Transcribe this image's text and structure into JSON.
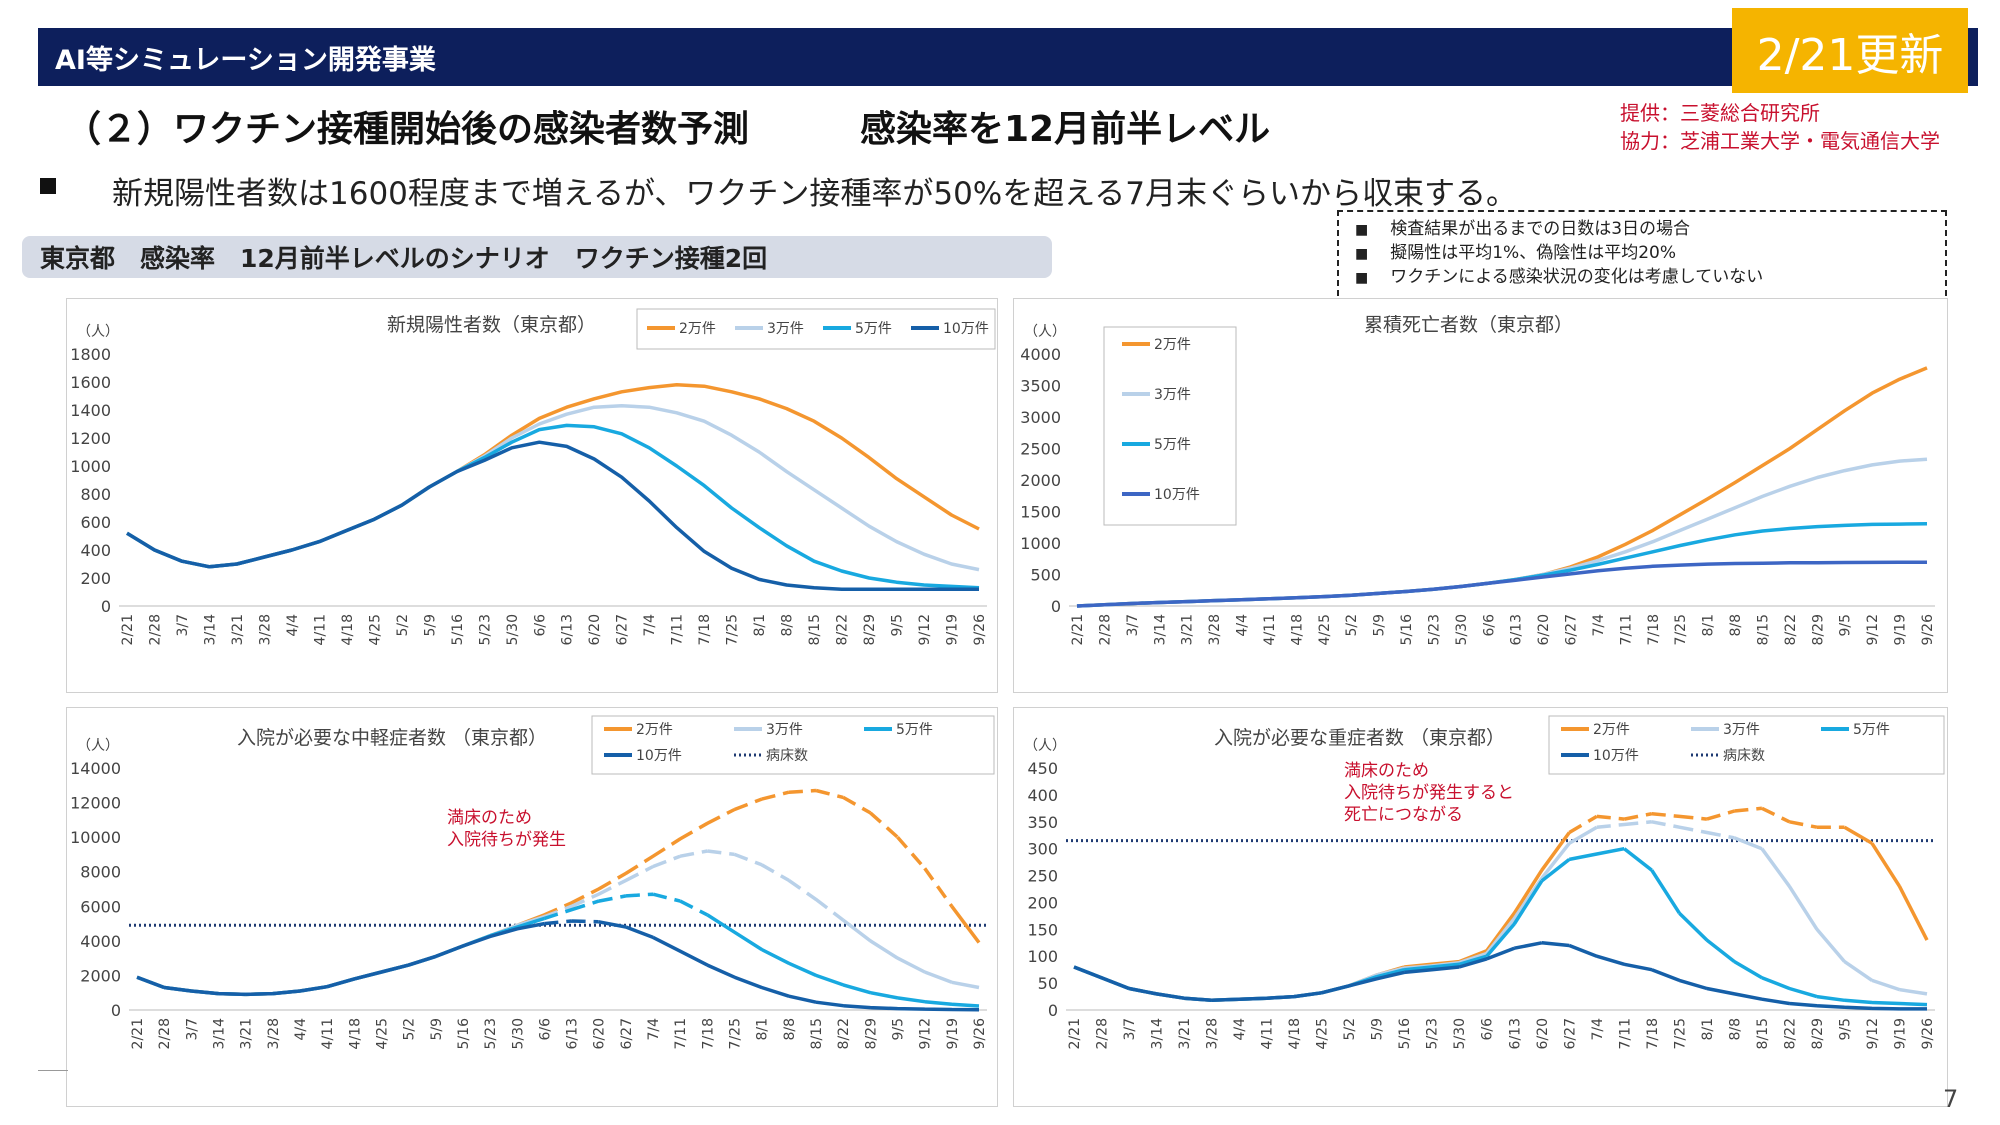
{
  "header": {
    "program": "AI等シミュレーション開発事業",
    "update_badge": "2/21更新",
    "title": "（２）ワクチン接種開始後の感染者数予測",
    "subtitle": "感染率を12月前半レベル",
    "credits": [
      "提供：三菱総合研究所",
      "協力：芝浦工業大学・電気通信大学"
    ]
  },
  "bullet": "新規陽性者数は1600程度まで増えるが、ワクチン接種率が50%を超える7月末ぐらいから収束する。",
  "scenario_label": "東京都　感染率　12月前半レベルのシナリオ　ワクチン接種2回",
  "notes": [
    "検査結果が出るまでの日数は3日の場合",
    "擬陽性は平均1%、偽陰性は平均20%",
    "ワクチンによる感染状況の変化は考慮していない"
  ],
  "page_number": "7",
  "colors": {
    "s1": "#f4962f",
    "s2": "#b9d1e9",
    "s3": "#18a9e0",
    "s4": "#155fa8",
    "s4_c2": "#3d66c4",
    "bed": "#1f3b73",
    "annotation": "#c8102e"
  },
  "chart_data": [
    {
      "id": "new_cases",
      "type": "line",
      "title": "新規陽性者数（東京都）",
      "ylabel": "（人）",
      "ylim": [
        0,
        1800
      ],
      "yticks": [
        0,
        200,
        400,
        600,
        800,
        1000,
        1200,
        1400,
        1600,
        1800
      ],
      "x": [
        "2/21",
        "2/28",
        "3/7",
        "3/14",
        "3/21",
        "3/28",
        "4/4",
        "4/11",
        "4/18",
        "4/25",
        "5/2",
        "5/9",
        "5/16",
        "5/23",
        "5/30",
        "6/6",
        "6/13",
        "6/20",
        "6/27",
        "7/4",
        "7/11",
        "7/18",
        "7/25",
        "8/1",
        "8/8",
        "8/15",
        "8/22",
        "8/29",
        "9/5",
        "9/12",
        "9/19",
        "9/26"
      ],
      "legend_position": "top-right",
      "series": [
        {
          "name": "2万件",
          "values": [
            520,
            400,
            320,
            280,
            300,
            350,
            400,
            460,
            540,
            620,
            720,
            850,
            960,
            1080,
            1220,
            1340,
            1420,
            1480,
            1530,
            1560,
            1580,
            1570,
            1530,
            1480,
            1410,
            1320,
            1200,
            1060,
            910,
            780,
            650,
            550
          ]
        },
        {
          "name": "3万件",
          "values": [
            520,
            400,
            320,
            280,
            300,
            350,
            400,
            460,
            540,
            620,
            720,
            850,
            960,
            1070,
            1200,
            1300,
            1370,
            1420,
            1430,
            1420,
            1380,
            1320,
            1220,
            1100,
            960,
            830,
            700,
            570,
            460,
            370,
            300,
            260
          ]
        },
        {
          "name": "5万件",
          "values": [
            520,
            400,
            320,
            280,
            300,
            350,
            400,
            460,
            540,
            620,
            720,
            850,
            960,
            1060,
            1170,
            1260,
            1290,
            1280,
            1230,
            1130,
            1000,
            860,
            700,
            560,
            430,
            320,
            250,
            200,
            170,
            150,
            140,
            130
          ]
        },
        {
          "name": "10万件",
          "values": [
            520,
            400,
            320,
            280,
            300,
            350,
            400,
            460,
            540,
            620,
            720,
            850,
            960,
            1040,
            1130,
            1170,
            1140,
            1050,
            920,
            750,
            560,
            390,
            270,
            190,
            150,
            130,
            120,
            120,
            120,
            120,
            120,
            120
          ]
        }
      ]
    },
    {
      "id": "cumulative_deaths",
      "type": "line",
      "title": "累積死亡者数（東京都）",
      "ylabel": "（人）",
      "ylim": [
        0,
        4000
      ],
      "yticks": [
        0,
        500,
        1000,
        1500,
        2000,
        2500,
        3000,
        3500,
        4000
      ],
      "x": [
        "2/21",
        "2/28",
        "3/7",
        "3/14",
        "3/21",
        "3/28",
        "4/4",
        "4/11",
        "4/18",
        "4/25",
        "5/2",
        "5/9",
        "5/16",
        "5/23",
        "5/30",
        "6/6",
        "6/13",
        "6/20",
        "6/27",
        "7/4",
        "7/11",
        "7/18",
        "7/25",
        "8/1",
        "8/8",
        "8/15",
        "8/22",
        "8/29",
        "9/5",
        "9/12",
        "9/19",
        "9/26"
      ],
      "legend_position": "left",
      "series": [
        {
          "name": "2万件",
          "values": [
            0,
            20,
            40,
            55,
            70,
            85,
            100,
            115,
            130,
            150,
            170,
            200,
            230,
            265,
            310,
            360,
            420,
            500,
            620,
            780,
            980,
            1200,
            1450,
            1700,
            1960,
            2230,
            2500,
            2800,
            3100,
            3380,
            3600,
            3780
          ]
        },
        {
          "name": "3万件",
          "values": [
            0,
            20,
            40,
            55,
            70,
            85,
            100,
            115,
            130,
            150,
            170,
            200,
            230,
            265,
            310,
            360,
            420,
            500,
            600,
            720,
            860,
            1020,
            1200,
            1380,
            1560,
            1740,
            1900,
            2040,
            2150,
            2240,
            2300,
            2330
          ]
        },
        {
          "name": "5万件",
          "values": [
            0,
            20,
            40,
            55,
            70,
            85,
            100,
            115,
            130,
            150,
            170,
            200,
            230,
            265,
            310,
            360,
            420,
            490,
            570,
            660,
            760,
            860,
            960,
            1050,
            1130,
            1190,
            1230,
            1260,
            1280,
            1295,
            1300,
            1305
          ]
        },
        {
          "name": "10万件",
          "values": [
            0,
            20,
            40,
            55,
            70,
            85,
            100,
            115,
            130,
            150,
            170,
            200,
            230,
            265,
            310,
            360,
            410,
            460,
            510,
            560,
            600,
            630,
            650,
            665,
            675,
            680,
            685,
            688,
            690,
            692,
            694,
            695
          ]
        }
      ]
    },
    {
      "id": "moderate_hospitalized",
      "type": "line",
      "title": "入院が必要な中軽症者数 （東京都）",
      "ylabel": "（人）",
      "ylim": [
        0,
        14000
      ],
      "yticks": [
        0,
        2000,
        4000,
        6000,
        8000,
        10000,
        12000,
        14000
      ],
      "x": [
        "2/21",
        "2/28",
        "3/7",
        "3/14",
        "3/21",
        "3/28",
        "4/4",
        "4/11",
        "4/18",
        "4/25",
        "5/2",
        "5/9",
        "5/16",
        "5/23",
        "5/30",
        "6/6",
        "6/13",
        "6/20",
        "6/27",
        "7/4",
        "7/11",
        "7/18",
        "7/25",
        "8/1",
        "8/8",
        "8/15",
        "8/22",
        "8/29",
        "9/5",
        "9/12",
        "9/19",
        "9/26"
      ],
      "legend_position": "top-right",
      "bed_capacity": 4900,
      "annotation": "満床のため\n入院待ちが発生",
      "series": [
        {
          "name": "2万件",
          "values": [
            1900,
            1300,
            1100,
            950,
            900,
            950,
            1100,
            1350,
            1800,
            2200,
            2600,
            3100,
            3700,
            4300,
            4900,
            5500,
            6200,
            7000,
            7900,
            8900,
            9900,
            10800,
            11600,
            12200,
            12600,
            12700,
            12300,
            11400,
            10000,
            8200,
            6000,
            3900
          ]
        },
        {
          "name": "3万件",
          "values": [
            1900,
            1300,
            1100,
            950,
            900,
            950,
            1100,
            1350,
            1800,
            2200,
            2600,
            3100,
            3700,
            4300,
            4900,
            5400,
            6000,
            6700,
            7500,
            8300,
            8900,
            9200,
            9000,
            8400,
            7500,
            6400,
            5200,
            4000,
            3000,
            2200,
            1600,
            1300
          ]
        },
        {
          "name": "5万件",
          "values": [
            1900,
            1300,
            1100,
            950,
            900,
            950,
            1100,
            1350,
            1800,
            2200,
            2600,
            3100,
            3700,
            4300,
            4800,
            5300,
            5800,
            6300,
            6600,
            6700,
            6300,
            5500,
            4500,
            3500,
            2700,
            2000,
            1450,
            1000,
            700,
            480,
            330,
            230
          ]
        },
        {
          "name": "10万件",
          "values": [
            1900,
            1300,
            1100,
            950,
            900,
            950,
            1100,
            1350,
            1800,
            2200,
            2600,
            3100,
            3700,
            4250,
            4700,
            5000,
            5150,
            5100,
            4800,
            4200,
            3400,
            2600,
            1900,
            1300,
            800,
            450,
            250,
            140,
            80,
            50,
            30,
            20
          ]
        }
      ],
      "bed_label": "病床数"
    },
    {
      "id": "severe_hospitalized",
      "type": "line",
      "title": "入院が必要な重症者数 （東京都）",
      "ylabel": "（人）",
      "ylim": [
        0,
        450
      ],
      "yticks": [
        0,
        50,
        100,
        150,
        200,
        250,
        300,
        350,
        400,
        450
      ],
      "x": [
        "2/21",
        "2/28",
        "3/7",
        "3/14",
        "3/21",
        "3/28",
        "4/4",
        "4/11",
        "4/18",
        "4/25",
        "5/2",
        "5/9",
        "5/16",
        "5/23",
        "5/30",
        "6/6",
        "6/13",
        "6/20",
        "6/27",
        "7/4",
        "7/11",
        "7/18",
        "7/25",
        "8/1",
        "8/8",
        "8/15",
        "8/22",
        "8/29",
        "9/5",
        "9/12",
        "9/19",
        "9/26"
      ],
      "legend_position": "top-right",
      "bed_capacity": 315,
      "annotation": "満床のため\n入院待ちが発生すると\n死亡につながる",
      "series": [
        {
          "name": "2万件",
          "values": [
            80,
            60,
            40,
            30,
            22,
            18,
            20,
            22,
            25,
            32,
            45,
            65,
            80,
            85,
            90,
            110,
            180,
            260,
            330,
            360,
            355,
            365,
            360,
            355,
            370,
            375,
            350,
            340,
            340,
            310,
            230,
            130
          ]
        },
        {
          "name": "3万件",
          "values": [
            80,
            60,
            40,
            30,
            22,
            18,
            20,
            22,
            25,
            32,
            45,
            65,
            78,
            82,
            88,
            105,
            170,
            245,
            310,
            340,
            345,
            350,
            340,
            330,
            320,
            300,
            230,
            150,
            90,
            55,
            38,
            30
          ]
        },
        {
          "name": "5万件",
          "values": [
            80,
            60,
            40,
            30,
            22,
            18,
            20,
            22,
            25,
            32,
            45,
            62,
            75,
            80,
            85,
            100,
            160,
            240,
            280,
            290,
            300,
            260,
            180,
            130,
            90,
            60,
            40,
            25,
            18,
            14,
            12,
            10
          ]
        },
        {
          "name": "10万件",
          "values": [
            80,
            60,
            40,
            30,
            22,
            18,
            20,
            22,
            25,
            32,
            45,
            58,
            70,
            75,
            80,
            95,
            115,
            125,
            120,
            100,
            85,
            75,
            55,
            40,
            30,
            20,
            12,
            8,
            5,
            3,
            2,
            2
          ]
        }
      ],
      "bed_label": "病床数"
    }
  ]
}
